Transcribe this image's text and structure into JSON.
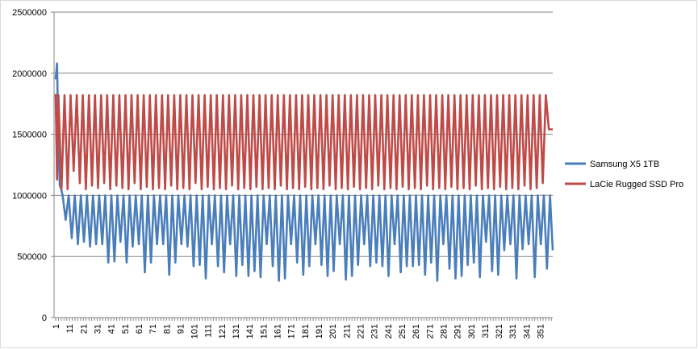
{
  "chart_data": {
    "type": "line",
    "title": "",
    "xlabel": "",
    "ylabel": "",
    "ylim": [
      0,
      2500000
    ],
    "y_ticks": [
      "0",
      "500000",
      "1000000",
      "1500000",
      "2000000",
      "2500000"
    ],
    "y_tick_values": [
      0,
      500000,
      1000000,
      1500000,
      2000000,
      2500000
    ],
    "x_range": [
      1,
      360
    ],
    "x_tick_labels": [
      "1",
      "11",
      "21",
      "31",
      "41",
      "51",
      "61",
      "71",
      "81",
      "91",
      "101",
      "111",
      "121",
      "131",
      "141",
      "151",
      "161",
      "171",
      "181",
      "191",
      "201",
      "211",
      "221",
      "231",
      "241",
      "251",
      "261",
      "271",
      "281",
      "291",
      "301",
      "311",
      "321",
      "331",
      "341",
      "351"
    ],
    "x_tick_values": [
      1,
      11,
      21,
      31,
      41,
      51,
      61,
      71,
      81,
      91,
      101,
      111,
      121,
      131,
      141,
      151,
      161,
      171,
      181,
      191,
      201,
      211,
      221,
      231,
      241,
      251,
      261,
      271,
      281,
      291,
      301,
      311,
      321,
      331,
      341,
      351
    ],
    "grid": "horizontal",
    "legend_position": "right",
    "series": [
      {
        "name": "Samsung X5 1TB",
        "color": "#4a7ebb",
        "start": [
          1950000,
          2080000,
          1400000,
          1080000,
          1050000
        ],
        "period": 4.4,
        "high": 1000000,
        "low_values": [
          800000,
          650000,
          600000,
          620000,
          580000,
          600000,
          600000,
          450000,
          460000,
          620000,
          450000,
          580000,
          600000,
          370000,
          450000,
          600000,
          600000,
          350000,
          450000,
          600000,
          580000,
          420000,
          430000,
          320000,
          600000,
          420000,
          370000,
          600000,
          340000,
          430000,
          340000,
          380000,
          330000,
          600000,
          420000,
          300000,
          320000,
          600000,
          450000,
          350000,
          420000,
          600000,
          430000,
          340000,
          380000,
          600000,
          310000,
          340000,
          430000,
          600000,
          420000,
          450000,
          420000,
          340000,
          600000,
          370000,
          420000,
          420000,
          430000,
          350000,
          450000,
          300000,
          600000,
          400000,
          320000,
          340000,
          430000,
          450000,
          330000,
          620000,
          380000,
          350000,
          550000,
          600000,
          320000,
          560000,
          600000,
          330000,
          600000,
          400000,
          550000
        ]
      },
      {
        "name": "LaCie Rugged SSD Pro",
        "color": "#be4b48",
        "start": [
          1830000,
          1130000
        ],
        "period": 4.4,
        "high": 1820000,
        "low_values": [
          1050000,
          1050000,
          1200000,
          1100000,
          1050000,
          1080000,
          1060000,
          1100000,
          1050000,
          1080000,
          1060000,
          1050000,
          1100000,
          1050000,
          1070000,
          1050000,
          1060000,
          1050000,
          1080000,
          1050000,
          1060000,
          1050000,
          1100000,
          1050000,
          1070000,
          1050000,
          1060000,
          1050000,
          1080000,
          1050000,
          1060000,
          1050000,
          1070000,
          1050000,
          1060000,
          1050000,
          1080000,
          1050000,
          1060000,
          1050000,
          1070000,
          1050000,
          1060000,
          1050000,
          1080000,
          1050000,
          1060000,
          1050000,
          1070000,
          1050000,
          1060000,
          1050000,
          1080000,
          1050000,
          1060000,
          1050000,
          1070000,
          1050000,
          1060000,
          1050000,
          1080000,
          1050000,
          1060000,
          1050000,
          1070000,
          1050000,
          1060000,
          1050000,
          1080000,
          1050000,
          1060000,
          1050000,
          1070000,
          1050000,
          1060000,
          1050000,
          1080000,
          1050000,
          1060000,
          1100000,
          1540000
        ],
        "end_value": 1540000
      }
    ]
  }
}
